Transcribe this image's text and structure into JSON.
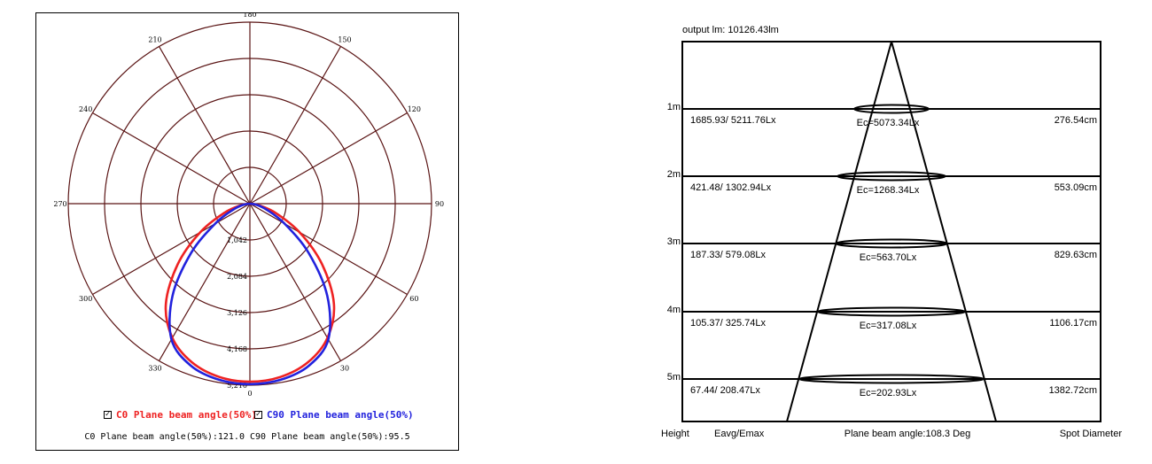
{
  "polar": {
    "angle_labels": [
      "180",
      "150",
      "120",
      "90",
      "60",
      "30",
      "0",
      "330",
      "300",
      "270",
      "240",
      "210"
    ],
    "radial_labels": [
      "1,042",
      "2,084",
      "3,126",
      "4,168",
      "5,210"
    ],
    "legend": [
      {
        "label": "C0 Plane beam angle(50%)",
        "checked": "✓",
        "color": "#ee2222"
      },
      {
        "label": "C90 Plane beam angle(50%)",
        "checked": "✓",
        "color": "#2222dd"
      }
    ],
    "summary": "C0 Plane beam angle(50%):121.0  C90 Plane beam angle(50%):95.5",
    "grid_color": "#5a1414"
  },
  "cone": {
    "output": "output lm: 10126.43lm",
    "rows": [
      {
        "height": "1m",
        "eavg_emax": "1685.93/ 5211.76Lx",
        "ec": "Ec=5073.34Lx",
        "diameter": "276.54cm"
      },
      {
        "height": "2m",
        "eavg_emax": "421.48/ 1302.94Lx",
        "ec": "Ec=1268.34Lx",
        "diameter": "553.09cm"
      },
      {
        "height": "3m",
        "eavg_emax": "187.33/ 579.08Lx",
        "ec": "Ec=563.70Lx",
        "diameter": "829.63cm"
      },
      {
        "height": "4m",
        "eavg_emax": "105.37/ 325.74Lx",
        "ec": "Ec=317.08Lx",
        "diameter": "1106.17cm"
      },
      {
        "height": "5m",
        "eavg_emax": "67.44/ 208.47Lx",
        "ec": "Ec=202.93Lx",
        "diameter": "1382.72cm"
      }
    ],
    "footer": {
      "height": "Height",
      "eavg": "Eavg/Emax",
      "beam": "Plane beam angle:108.3 Deg",
      "spot": "Spot Diameter"
    }
  },
  "chart_data": [
    {
      "type": "polar",
      "angle_ticks": [
        180,
        150,
        120,
        90,
        60,
        30,
        0,
        330,
        300,
        270,
        240,
        210
      ],
      "rlim": [
        0,
        5210
      ],
      "r_ticks": [
        1042,
        2084,
        3126,
        4168,
        5210
      ],
      "series": [
        {
          "name": "C0 Plane beam angle(50%)",
          "color": "#ee2222",
          "theta": [
            -90,
            -80,
            -70,
            -60,
            -50,
            -40,
            -30,
            -20,
            -10,
            0,
            10,
            20,
            30,
            40,
            50,
            60,
            70,
            80,
            90
          ],
          "r": [
            0,
            260,
            800,
            1650,
            2700,
            3750,
            4450,
            4850,
            5050,
            5110,
            5050,
            4850,
            4450,
            3750,
            2700,
            1650,
            800,
            260,
            0
          ]
        },
        {
          "name": "C90 Plane beam angle(50%)",
          "color": "#2222dd",
          "theta": [
            -90,
            -80,
            -70,
            -60,
            -50,
            -40,
            -30,
            -20,
            -10,
            0,
            10,
            20,
            30,
            40,
            50,
            60,
            70,
            80,
            90
          ],
          "r": [
            0,
            200,
            520,
            1150,
            2200,
            3450,
            4500,
            4950,
            5130,
            5180,
            5130,
            4950,
            4500,
            3450,
            2200,
            1150,
            520,
            200,
            0
          ]
        }
      ]
    },
    {
      "type": "table",
      "title": "output lm: 10126.43lm",
      "columns": [
        "Height",
        "Eavg/Emax",
        "Ec",
        "Spot Diameter"
      ],
      "rows": [
        [
          "1m",
          "1685.93/ 5211.76Lx",
          "Ec=5073.34Lx",
          "276.54cm"
        ],
        [
          "2m",
          "421.48/ 1302.94Lx",
          "Ec=1268.34Lx",
          "553.09cm"
        ],
        [
          "3m",
          "187.33/ 579.08Lx",
          "Ec=563.70Lx",
          "829.63cm"
        ],
        [
          "4m",
          "105.37/ 325.74Lx",
          "Ec=317.08Lx",
          "1106.17cm"
        ],
        [
          "5m",
          "67.44/ 208.47Lx",
          "Ec=202.93Lx",
          "1382.72cm"
        ]
      ],
      "beam_angle_deg": 108.3
    }
  ]
}
